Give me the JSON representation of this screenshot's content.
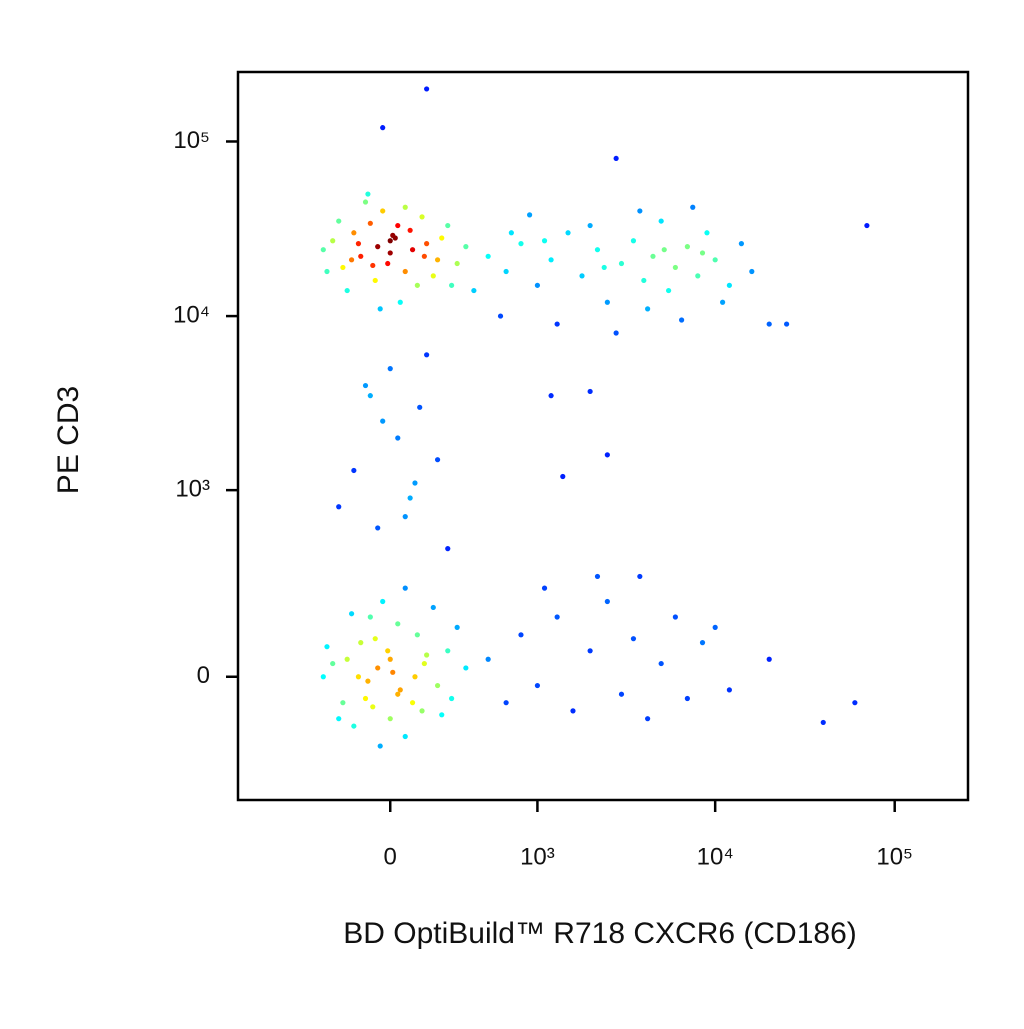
{
  "chart_data": {
    "type": "scatter",
    "x_label": "BD OptiBuild™ R718 CXCR6 (CD186)",
    "y_label": "PE CD3",
    "xlim": [
      -1070,
      256000
    ],
    "ylim": [
      -420,
      250000
    ],
    "xticks": [
      0,
      {
        "value": 1000,
        "label": "10³"
      },
      {
        "value": 10000,
        "label": "10⁴"
      },
      {
        "value": 100000,
        "label": "10⁵"
      }
    ],
    "yticks": [
      0,
      {
        "value": 1000,
        "label": "10³"
      },
      {
        "value": 10000,
        "label": "10⁴"
      },
      {
        "value": 100000,
        "label": "10⁵"
      }
    ],
    "x": [
      -50,
      20,
      -120,
      80,
      -200,
      150,
      0,
      -80,
      60,
      -250,
      200,
      -30,
      110,
      -150,
      250,
      -300,
      40,
      -100,
      300,
      -60,
      130,
      -180,
      10,
      90,
      -220,
      180,
      -10,
      -130,
      60,
      220,
      -280,
      350,
      -40,
      140,
      -90,
      30,
      -160,
      270,
      0,
      -70,
      500,
      650,
      800,
      1000,
      1200,
      1500,
      1800,
      2200,
      2500,
      3000,
      3500,
      4000,
      4500,
      5000,
      5500,
      6000,
      7000,
      8000,
      9000,
      10000,
      12000,
      14000,
      16000,
      600,
      900,
      1300,
      2000,
      2800,
      3800,
      4200,
      6500,
      7500,
      11000,
      20000,
      700,
      400,
      1100,
      2400,
      5200,
      8500,
      -50,
      30,
      -120,
      100,
      -200,
      150,
      0,
      -80,
      60,
      -250,
      200,
      -30,
      110,
      -150,
      250,
      -300,
      40,
      -100,
      300,
      -60,
      130,
      -180,
      10,
      90,
      -220,
      180,
      -10,
      -130,
      60,
      220,
      -280,
      350,
      -40,
      140,
      -90,
      30,
      -160,
      270,
      0,
      -70,
      500,
      650,
      800,
      1000,
      1300,
      1600,
      2000,
      2500,
      3000,
      3500,
      4200,
      5000,
      6000,
      7000,
      8500,
      10000,
      12000,
      20000,
      40000,
      60000,
      2200,
      3800,
      1100,
      -50,
      80,
      -150,
      30,
      120,
      -100,
      0,
      200,
      -220,
      60,
      -30,
      150,
      250,
      -80,
      100,
      150,
      -30,
      2800,
      70000,
      25000,
      1400,
      2500,
      1200,
      2000
    ],
    "y": [
      25000,
      28000,
      22000,
      31000,
      19000,
      26000,
      23000,
      34000,
      18000,
      27000,
      21000,
      40000,
      15000,
      30000,
      33000,
      24000,
      12000,
      45000,
      20000,
      16000,
      37000,
      14000,
      29000,
      24000,
      35000,
      17000,
      20000,
      26000,
      42000,
      28000,
      18000,
      25000,
      11000,
      22000,
      50000,
      33000,
      21000,
      15000,
      27000,
      19500,
      22000,
      18000,
      26000,
      15000,
      21000,
      30000,
      17000,
      24000,
      12000,
      20000,
      27000,
      16000,
      22000,
      35000,
      14000,
      19000,
      25000,
      17000,
      30000,
      21000,
      15000,
      26000,
      18000,
      10000,
      38000,
      9000,
      33000,
      8000,
      40000,
      11000,
      9500,
      42000,
      12000,
      9000,
      30000,
      14000,
      27000,
      19000,
      24000,
      23000,
      20,
      -40,
      80,
      0,
      -60,
      50,
      -100,
      150,
      -150,
      30,
      -20,
      200,
      100,
      -120,
      60,
      0,
      -30,
      -50,
      120,
      90,
      -80,
      40,
      10,
      -60,
      -100,
      180,
      60,
      0,
      250,
      -90,
      70,
      20,
      -180,
      30,
      -10,
      130,
      160,
      -50,
      40,
      -70,
      40,
      -60,
      100,
      -20,
      150,
      -80,
      60,
      200,
      -40,
      90,
      -100,
      30,
      150,
      -50,
      80,
      120,
      -30,
      40,
      -110,
      -60,
      300,
      300,
      250,
      600,
      900,
      1300,
      2000,
      3000,
      4000,
      5000,
      1500,
      800,
      700,
      2500,
      6000,
      450,
      3500,
      1100,
      200000,
      120000,
      80000,
      33000,
      9000,
      1200,
      1600,
      3500,
      3700
    ]
  }
}
